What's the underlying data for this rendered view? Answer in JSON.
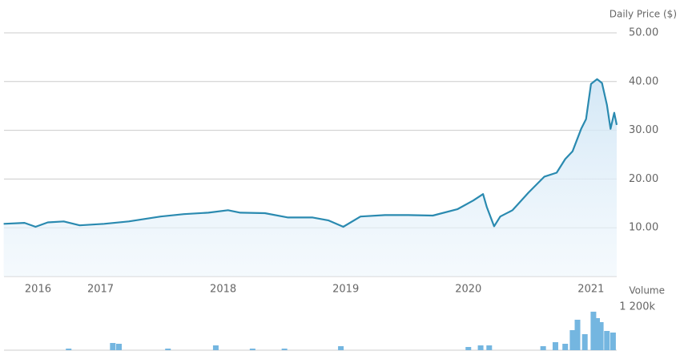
{
  "chart_data": [
    {
      "type": "area",
      "title": "Daily Price ($)",
      "color": "#2a8ab0",
      "x": [
        2016.21,
        2016.38,
        2016.47,
        2016.57,
        2016.7,
        2016.83,
        2017.03,
        2017.23,
        2017.49,
        2017.68,
        2017.88,
        2018.04,
        2018.14,
        2018.34,
        2018.53,
        2018.73,
        2018.86,
        2018.98,
        2019.12,
        2019.32,
        2019.51,
        2019.71,
        2019.91,
        2020.04,
        2020.12,
        2020.15,
        2020.21,
        2020.26,
        2020.36,
        2020.49,
        2020.62,
        2020.72,
        2020.79,
        2020.85,
        2020.92,
        2020.96,
        2021.0,
        2021.05,
        2021.09,
        2021.13,
        2021.16,
        2021.19,
        2021.21
      ],
      "values": [
        10.8,
        11,
        10.2,
        11.1,
        11.3,
        10.5,
        10.8,
        11.3,
        12.3,
        12.8,
        13.1,
        13.6,
        13.1,
        13,
        12.1,
        12.1,
        11.5,
        10.2,
        12.3,
        12.6,
        12.6,
        12.5,
        13.8,
        15.6,
        16.9,
        14.3,
        10.3,
        12.3,
        13.6,
        17.2,
        20.5,
        21.3,
        24.1,
        25.7,
        30.3,
        32.3,
        39.5,
        40.5,
        39.7,
        35.2,
        30.3,
        33.6,
        31.1
      ],
      "xlim": [
        2016.18,
        2021.21
      ],
      "xticks": [
        {
          "value": 2016.49,
          "label": "2016"
        },
        2017,
        2018,
        2019,
        2020,
        2021
      ],
      "ylim": [
        0,
        50
      ],
      "yticks": [
        {
          "value": 10,
          "label": "10.00"
        },
        {
          "value": 20,
          "label": "20.00"
        },
        {
          "value": 30,
          "label": "30.00"
        },
        {
          "value": 40,
          "label": "40.00"
        },
        {
          "value": 50,
          "label": "50.00"
        }
      ],
      "grid": true
    },
    {
      "type": "bar",
      "title": "Volume",
      "color": "#74b6e0",
      "x": [
        2016.74,
        2017.1,
        2017.15,
        2017.55,
        2017.94,
        2018.24,
        2018.5,
        2018.96,
        2020.0,
        2020.1,
        2020.17,
        2020.61,
        2020.71,
        2020.79,
        2020.85,
        2020.89,
        2020.95,
        2021.02,
        2021.05,
        2021.08,
        2021.13,
        2021.18
      ],
      "values": [
        44000,
        200000,
        178000,
        44000,
        133000,
        44000,
        44000,
        111000,
        89000,
        133000,
        133000,
        111000,
        222000,
        178000,
        556000,
        844000,
        444000,
        1067000,
        889000,
        778000,
        533000,
        489000
      ],
      "xlim": [
        2016.18,
        2021.21
      ],
      "ylim": [
        0,
        1310000
      ],
      "yticks": [
        {
          "value": 1200000,
          "label": "1 200k"
        }
      ]
    }
  ]
}
